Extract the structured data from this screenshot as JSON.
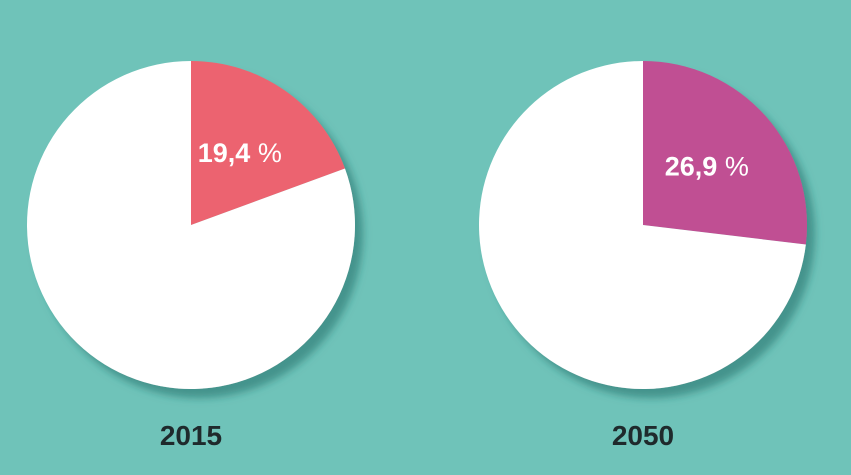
{
  "background_color": "#6fc3b9",
  "chart_data": [
    {
      "type": "pie",
      "xlabel": "2015",
      "slices": [
        {
          "value": 19.4,
          "label_number": "19,4",
          "label_unit": "%",
          "color": "#ec6470"
        },
        {
          "value": 80.6,
          "color": "#ffffff"
        }
      ]
    },
    {
      "type": "pie",
      "xlabel": "2050",
      "slices": [
        {
          "value": 26.9,
          "label_number": "26,9",
          "label_unit": "%",
          "color": "#c04f93"
        },
        {
          "value": 73.1,
          "color": "#ffffff"
        }
      ]
    }
  ]
}
